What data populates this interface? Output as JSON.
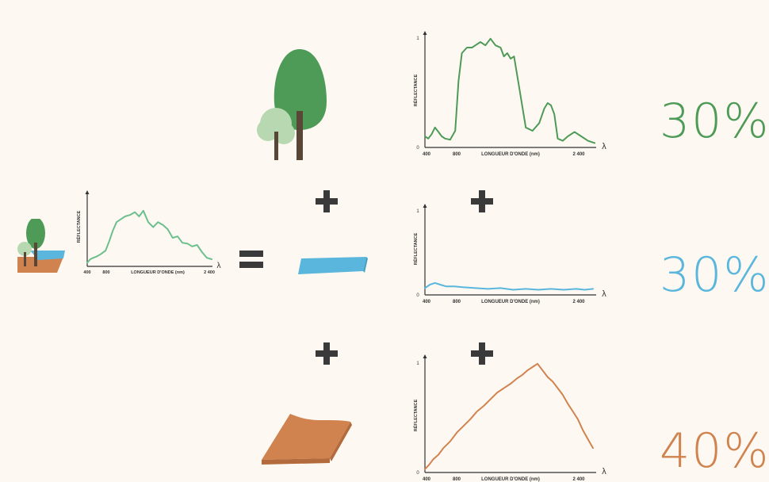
{
  "colors": {
    "background": "#fdf9f2",
    "vegetation": "#4e9a57",
    "vegetation_light": "#b7d8b0",
    "trunk": "#5a4636",
    "water": "#5ab6dc",
    "soil": "#d0834f",
    "mixed": "#6dbf8e",
    "operator": "#3a3a3a",
    "axis": "#333333"
  },
  "icons": {
    "trees": "trees-icon",
    "water": "water-surface-icon",
    "soil": "soil-surface-icon",
    "mixed": "mixed-pixel-icon",
    "plus": "plus-icon",
    "equals": "equals-icon"
  },
  "axes": {
    "ylabel": "RÉFLECTANCE",
    "xlabel": "LONGUEUR D'ONDE (nm)",
    "lambda": "λ",
    "y_top": "1",
    "y_zero": "0",
    "x_ticks": [
      "400",
      "800",
      "2 400"
    ],
    "x_tick_mixed_last": "2 400"
  },
  "fractions": {
    "vegetation": "30%",
    "water": "30%",
    "soil": "40%"
  },
  "chart_data": [
    {
      "type": "line",
      "name": "mixed",
      "x": [
        400,
        450,
        500,
        560,
        620,
        700,
        760,
        820,
        880,
        950,
        1020,
        1100,
        1180,
        1250,
        1320,
        1400,
        1480,
        1560,
        1640,
        1720,
        1800,
        1880,
        1960,
        2040,
        2120,
        2200,
        2280,
        2360,
        2440
      ],
      "y": [
        0.05,
        0.1,
        0.12,
        0.14,
        0.17,
        0.22,
        0.35,
        0.5,
        0.62,
        0.66,
        0.7,
        0.72,
        0.76,
        0.7,
        0.78,
        0.62,
        0.55,
        0.62,
        0.58,
        0.52,
        0.4,
        0.42,
        0.33,
        0.32,
        0.28,
        0.3,
        0.2,
        0.12,
        0.1
      ],
      "ylim": [
        0,
        1
      ],
      "xlim": [
        400,
        2400
      ]
    },
    {
      "type": "line",
      "name": "vegetation",
      "x": [
        400,
        440,
        480,
        520,
        560,
        600,
        640,
        700,
        760,
        800,
        840,
        900,
        960,
        1000,
        1060,
        1120,
        1180,
        1240,
        1300,
        1340,
        1380,
        1420,
        1460,
        1520,
        1600,
        1680,
        1760,
        1820,
        1860,
        1900,
        1940,
        1980,
        2040,
        2100,
        2180,
        2260,
        2340,
        2420
      ],
      "y": [
        0.1,
        0.08,
        0.12,
        0.18,
        0.14,
        0.1,
        0.08,
        0.07,
        0.15,
        0.6,
        0.85,
        0.9,
        0.9,
        0.92,
        0.95,
        0.92,
        0.98,
        0.92,
        0.9,
        0.82,
        0.85,
        0.8,
        0.82,
        0.55,
        0.18,
        0.15,
        0.22,
        0.35,
        0.4,
        0.38,
        0.3,
        0.08,
        0.06,
        0.1,
        0.14,
        0.1,
        0.06,
        0.04
      ],
      "ylim": [
        0,
        1
      ],
      "xlim": [
        400,
        2400
      ]
    },
    {
      "type": "line",
      "name": "water",
      "x": [
        400,
        460,
        520,
        580,
        650,
        750,
        850,
        1000,
        1150,
        1300,
        1450,
        1600,
        1750,
        1900,
        2050,
        2200,
        2300,
        2400
      ],
      "y": [
        0.08,
        0.12,
        0.14,
        0.12,
        0.1,
        0.1,
        0.09,
        0.08,
        0.07,
        0.08,
        0.06,
        0.07,
        0.06,
        0.07,
        0.06,
        0.07,
        0.06,
        0.07
      ],
      "ylim": [
        0,
        1
      ],
      "xlim": [
        400,
        2400
      ]
    },
    {
      "type": "line",
      "name": "soil",
      "x": [
        400,
        450,
        500,
        560,
        620,
        700,
        780,
        860,
        940,
        1020,
        1100,
        1180,
        1260,
        1340,
        1420,
        1500,
        1560,
        1620,
        1680,
        1740,
        1800,
        1860,
        1920,
        1980,
        2040,
        2100,
        2160,
        2220,
        2280,
        2340,
        2400
      ],
      "y": [
        0.03,
        0.07,
        0.12,
        0.16,
        0.22,
        0.28,
        0.36,
        0.42,
        0.48,
        0.55,
        0.6,
        0.66,
        0.72,
        0.76,
        0.8,
        0.85,
        0.88,
        0.92,
        0.95,
        0.98,
        0.92,
        0.86,
        0.82,
        0.76,
        0.7,
        0.62,
        0.55,
        0.48,
        0.38,
        0.3,
        0.22
      ],
      "ylim": [
        0,
        1
      ],
      "xlim": [
        400,
        2400
      ]
    }
  ]
}
